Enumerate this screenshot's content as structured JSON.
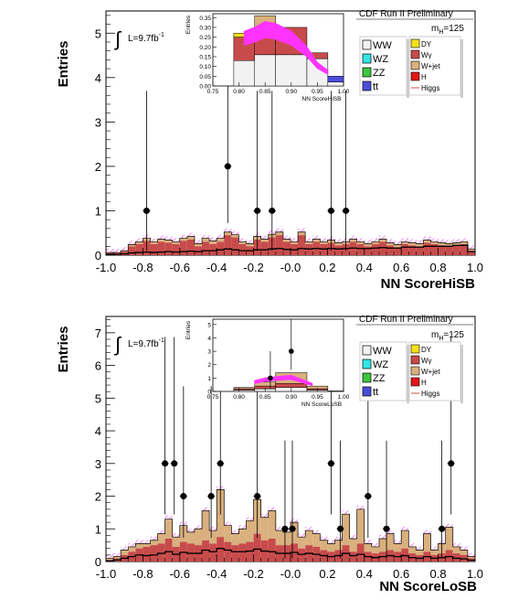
{
  "colors": {
    "WW": "#f2f2f2",
    "WZ": "#33e6e6",
    "ZZ": "#3fc63f",
    "tt": "#4d4dd9",
    "DY": "#f2e21a",
    "Wgamma": "#c84b4b",
    "Wjet": "#d9b07e",
    "H": "#e01818",
    "Higgs": "#ff33ff",
    "data": "#000000"
  },
  "shared": {
    "cdf_label": "CDF Run II Preliminary",
    "lumi_label": "L=9.7fb",
    "lumi_sup": "-1",
    "mass_label": "m",
    "mass_sub": "H",
    "mass_value": "=125",
    "ylabel": "Entries",
    "inset_ylabel": "Entries",
    "legend_left": [
      "WW",
      "WZ",
      "ZZ",
      "tt"
    ],
    "legend_right": [
      "DY",
      "Wγ",
      "W+jet",
      "H",
      "Higgs"
    ]
  },
  "chart_data": [
    {
      "type": "bar",
      "title": "",
      "xlabel": "NN ScoreHiSB",
      "ylabel": "Entries",
      "xlim": [
        -1.0,
        1.0
      ],
      "ylim": [
        0,
        5.5
      ],
      "xticks": [
        "-1.0",
        "-0.8",
        "-0.6",
        "-0.4",
        "-0.2",
        "-0.0",
        "0.2",
        "0.4",
        "0.6",
        "0.8",
        "1.0"
      ],
      "yticks": [
        "0",
        "1",
        "2",
        "3",
        "4",
        "5"
      ],
      "bin_edges_start": -1.0,
      "bin_width": 0.04,
      "background_wgamma": [
        0.05,
        0.05,
        0.08,
        0.2,
        0.25,
        0.32,
        0.25,
        0.3,
        0.28,
        0.25,
        0.32,
        0.35,
        0.2,
        0.3,
        0.25,
        0.3,
        0.45,
        0.4,
        0.25,
        0.2,
        0.35,
        0.3,
        0.4,
        0.45,
        0.3,
        0.25,
        0.45,
        0.25,
        0.3,
        0.25,
        0.28,
        0.22,
        0.25,
        0.3,
        0.25,
        0.2,
        0.25,
        0.3,
        0.22,
        0.18,
        0.25,
        0.22,
        0.2,
        0.28,
        0.25,
        0.22,
        0.2,
        0.22,
        0.25,
        0.1
      ],
      "background_total": [
        0.06,
        0.06,
        0.1,
        0.24,
        0.3,
        0.38,
        0.3,
        0.36,
        0.34,
        0.3,
        0.38,
        0.42,
        0.26,
        0.38,
        0.32,
        0.38,
        0.52,
        0.46,
        0.3,
        0.26,
        0.42,
        0.36,
        0.47,
        0.52,
        0.36,
        0.3,
        0.52,
        0.3,
        0.36,
        0.3,
        0.34,
        0.28,
        0.3,
        0.36,
        0.3,
        0.26,
        0.3,
        0.36,
        0.28,
        0.24,
        0.3,
        0.28,
        0.26,
        0.34,
        0.3,
        0.28,
        0.26,
        0.28,
        0.3,
        0.14
      ],
      "ww_line": [
        0.02,
        0.02,
        0.03,
        0.05,
        0.06,
        0.07,
        0.06,
        0.07,
        0.08,
        0.07,
        0.08,
        0.09,
        0.08,
        0.1,
        0.1,
        0.12,
        0.14,
        0.12,
        0.1,
        0.1,
        0.12,
        0.12,
        0.14,
        0.15,
        0.13,
        0.12,
        0.15,
        0.14,
        0.15,
        0.14,
        0.15,
        0.14,
        0.15,
        0.16,
        0.15,
        0.15,
        0.16,
        0.17,
        0.16,
        0.16,
        0.18,
        0.18,
        0.18,
        0.2,
        0.2,
        0.2,
        0.2,
        0.22,
        0.22,
        0.08
      ],
      "data_points": [
        {
          "x": -0.78,
          "y": 1
        },
        {
          "x": -0.34,
          "y": 2
        },
        {
          "x": -0.18,
          "y": 1
        },
        {
          "x": -0.1,
          "y": 1
        },
        {
          "x": 0.22,
          "y": 1
        },
        {
          "x": 0.3,
          "y": 1
        }
      ],
      "inset": {
        "xlabel": "NN ScoreHiSB",
        "xlim": [
          0.75,
          1.0
        ],
        "ylim": [
          0,
          0.37
        ],
        "xticks": [
          "0.75",
          "0.80",
          "0.85",
          "0.90",
          "0.95",
          "1.00"
        ],
        "yticks": [
          "0.00",
          "0.05",
          "0.10",
          "0.15",
          "0.20",
          "0.25",
          "0.30",
          "0.35"
        ],
        "bins": [
          {
            "x0": 0.75,
            "x1": 0.79,
            "ww": 0.0,
            "wgamma": 0.0,
            "wjet": 0.0,
            "dy": 0.0,
            "tt": 0.0
          },
          {
            "x0": 0.79,
            "x1": 0.83,
            "ww": 0.13,
            "wgamma": 0.12,
            "wjet": 0.0,
            "dy": 0.02,
            "tt": 0.0
          },
          {
            "x0": 0.83,
            "x1": 0.87,
            "ww": 0.16,
            "wgamma": 0.11,
            "wjet": 0.07,
            "dy": 0.02,
            "tt": 0.0
          },
          {
            "x0": 0.87,
            "x1": 0.93,
            "ww": 0.16,
            "wgamma": 0.14,
            "wjet": 0.0,
            "dy": 0.0,
            "tt": 0.0
          },
          {
            "x0": 0.93,
            "x1": 0.97,
            "ww": 0.14,
            "wgamma": 0.03,
            "wjet": 0.0,
            "dy": 0.0,
            "tt": 0.0
          },
          {
            "x0": 0.97,
            "x1": 1.0,
            "ww": 0.02,
            "wgamma": 0.0,
            "wjet": 0.0,
            "dy": 0.0,
            "tt": 0.03
          }
        ],
        "higgs_band": [
          [
            0.81,
            0.28
          ],
          [
            0.83,
            0.3
          ],
          [
            0.85,
            0.33
          ],
          [
            0.87,
            0.32
          ],
          [
            0.9,
            0.28
          ],
          [
            0.93,
            0.2
          ],
          [
            0.95,
            0.12
          ],
          [
            0.97,
            0.08
          ]
        ]
      }
    },
    {
      "type": "bar",
      "title": "",
      "xlabel": "NN ScoreLoSB",
      "ylabel": "Entries",
      "xlim": [
        -1.0,
        1.0
      ],
      "ylim": [
        0,
        7.5
      ],
      "xticks": [
        "-1.0",
        "-0.8",
        "-0.6",
        "-0.4",
        "-0.2",
        "-0.0",
        "0.2",
        "0.4",
        "0.6",
        "0.8",
        "1.0"
      ],
      "yticks": [
        "0",
        "1",
        "2",
        "3",
        "4",
        "5",
        "6",
        "7"
      ],
      "bin_edges_start": -1.0,
      "bin_width": 0.04,
      "background_wgamma": [
        0.05,
        0.1,
        0.2,
        0.3,
        0.4,
        0.45,
        0.5,
        0.55,
        0.7,
        0.45,
        0.6,
        0.55,
        0.5,
        0.65,
        0.55,
        0.75,
        0.6,
        0.5,
        0.55,
        0.6,
        0.85,
        0.65,
        0.7,
        0.5,
        0.5,
        0.55,
        0.4,
        0.5,
        0.45,
        0.35,
        0.3,
        0.35,
        0.5,
        0.3,
        0.55,
        0.3,
        0.25,
        0.3,
        0.35,
        0.3,
        0.4,
        0.25,
        0.2,
        0.3,
        0.2,
        0.25,
        0.35,
        0.25,
        0.2,
        0.1
      ],
      "background_total": [
        0.1,
        0.15,
        0.35,
        0.45,
        0.55,
        0.55,
        0.65,
        0.85,
        1.3,
        0.75,
        1.1,
        0.9,
        1.0,
        1.55,
        0.95,
        2.2,
        1.1,
        0.85,
        1.0,
        1.25,
        1.9,
        1.35,
        1.55,
        0.95,
        0.9,
        1.2,
        0.75,
        0.95,
        0.85,
        0.65,
        0.55,
        0.65,
        1.45,
        0.7,
        1.6,
        0.55,
        0.45,
        0.7,
        0.85,
        0.55,
        0.95,
        0.45,
        0.35,
        0.85,
        0.35,
        0.55,
        1.05,
        0.45,
        0.35,
        0.15
      ],
      "ww_line": [
        0.02,
        0.05,
        0.1,
        0.15,
        0.2,
        0.18,
        0.2,
        0.25,
        0.3,
        0.22,
        0.28,
        0.25,
        0.25,
        0.35,
        0.3,
        0.4,
        0.35,
        0.3,
        0.3,
        0.32,
        0.38,
        0.32,
        0.3,
        0.25,
        0.25,
        0.28,
        0.22,
        0.25,
        0.22,
        0.18,
        0.15,
        0.18,
        0.25,
        0.18,
        0.22,
        0.15,
        0.12,
        0.15,
        0.18,
        0.15,
        0.18,
        0.12,
        0.1,
        0.15,
        0.1,
        0.12,
        0.15,
        0.1,
        0.08,
        0.04
      ],
      "data_points": [
        {
          "x": -0.68,
          "y": 3
        },
        {
          "x": -0.63,
          "y": 3
        },
        {
          "x": -0.58,
          "y": 2
        },
        {
          "x": -0.43,
          "y": 2
        },
        {
          "x": -0.38,
          "y": 3
        },
        {
          "x": -0.18,
          "y": 2
        },
        {
          "x": -0.03,
          "y": 1
        },
        {
          "x": 0.01,
          "y": 1
        },
        {
          "x": 0.22,
          "y": 3
        },
        {
          "x": 0.27,
          "y": 1
        },
        {
          "x": 0.42,
          "y": 2
        },
        {
          "x": 0.52,
          "y": 1
        },
        {
          "x": 0.82,
          "y": 1
        },
        {
          "x": 0.87,
          "y": 3
        }
      ],
      "inset": {
        "xlabel": "NN ScoreLoSB",
        "xlim": [
          0.75,
          1.0
        ],
        "ylim": [
          0,
          5.4
        ],
        "xticks": [
          "0.75",
          "0.80",
          "0.85",
          "0.90",
          "0.95",
          "1.00"
        ],
        "yticks": [
          "0",
          "1",
          "2",
          "3",
          "4",
          "5"
        ],
        "bins": [
          {
            "x0": 0.75,
            "x1": 0.79,
            "ww": 0.0,
            "wgamma": 0.0,
            "wjet": 0.0,
            "dy": 0.0,
            "tt": 0.0
          },
          {
            "x0": 0.79,
            "x1": 0.83,
            "ww": 0.1,
            "wgamma": 0.1,
            "wjet": 0.1,
            "dy": 0.0,
            "tt": 0.0
          },
          {
            "x0": 0.83,
            "x1": 0.87,
            "ww": 0.2,
            "wgamma": 0.2,
            "wjet": 0.3,
            "dy": 0.0,
            "tt": 0.0
          },
          {
            "x0": 0.87,
            "x1": 0.93,
            "ww": 0.3,
            "wgamma": 0.3,
            "wjet": 0.8,
            "dy": 0.0,
            "tt": 0.0
          },
          {
            "x0": 0.93,
            "x1": 0.97,
            "ww": 0.1,
            "wgamma": 0.1,
            "wjet": 0.2,
            "dy": 0.0,
            "tt": 0.0
          },
          {
            "x0": 0.97,
            "x1": 1.0,
            "ww": 0.05,
            "wgamma": 0.0,
            "wjet": 0.0,
            "dy": 0.0,
            "tt": 0.0
          }
        ],
        "higgs_band": [
          [
            0.83,
            0.8
          ],
          [
            0.85,
            1.0
          ],
          [
            0.87,
            1.1
          ],
          [
            0.9,
            1.2
          ],
          [
            0.92,
            0.9
          ],
          [
            0.94,
            0.6
          ]
        ],
        "data_points": [
          {
            "x": 0.86,
            "y": 1
          },
          {
            "x": 0.9,
            "y": 3
          }
        ]
      }
    }
  ]
}
